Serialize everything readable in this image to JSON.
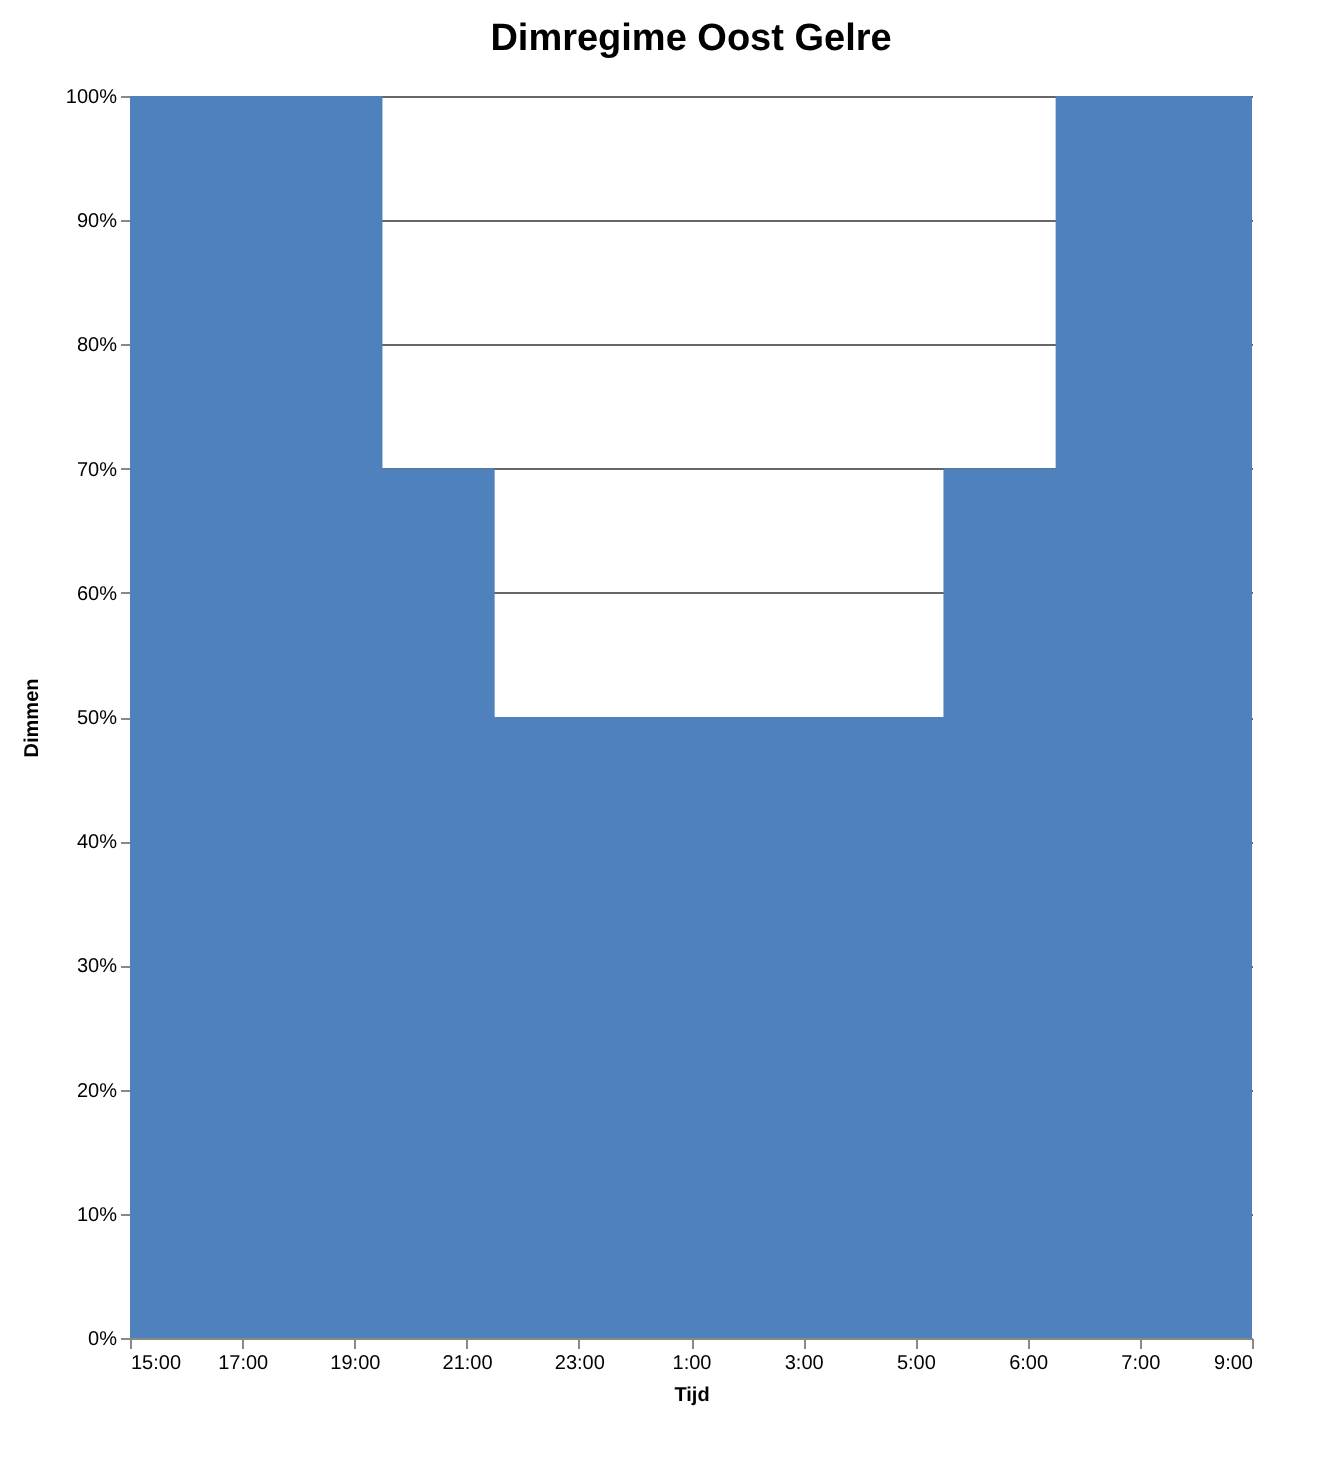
{
  "chart_data": {
    "type": "area",
    "title": "Dimregime Oost Gelre",
    "xlabel": "Tijd",
    "ylabel": "Dimmen",
    "categories": [
      "15:00",
      null,
      "17:00",
      null,
      "19:00",
      null,
      "21:00",
      null,
      "23:00",
      null,
      "1:00",
      null,
      "3:00",
      null,
      "5:00",
      null,
      "6:00",
      null,
      "7:00",
      null,
      "9:00"
    ],
    "series": [
      {
        "color": "#4f81bd",
        "values": [
          100,
          100,
          100,
          100,
          100,
          70,
          70,
          50,
          50,
          50,
          50,
          50,
          50,
          50,
          50,
          70,
          70,
          100,
          100,
          100,
          100
        ]
      }
    ],
    "ylim": [
      0,
      100
    ],
    "yticks": [
      {
        "value": 0,
        "label": "0%"
      },
      {
        "value": 10,
        "label": "10%"
      },
      {
        "value": 20,
        "label": "20%"
      },
      {
        "value": 30,
        "label": "30%"
      },
      {
        "value": 40,
        "label": "40%"
      },
      {
        "value": 50,
        "label": "50%"
      },
      {
        "value": 60,
        "label": "60%"
      },
      {
        "value": 70,
        "label": "70%"
      },
      {
        "value": 80,
        "label": "80%"
      },
      {
        "value": 90,
        "label": "90%"
      },
      {
        "value": 100,
        "label": "100%"
      }
    ],
    "grid": "y"
  }
}
